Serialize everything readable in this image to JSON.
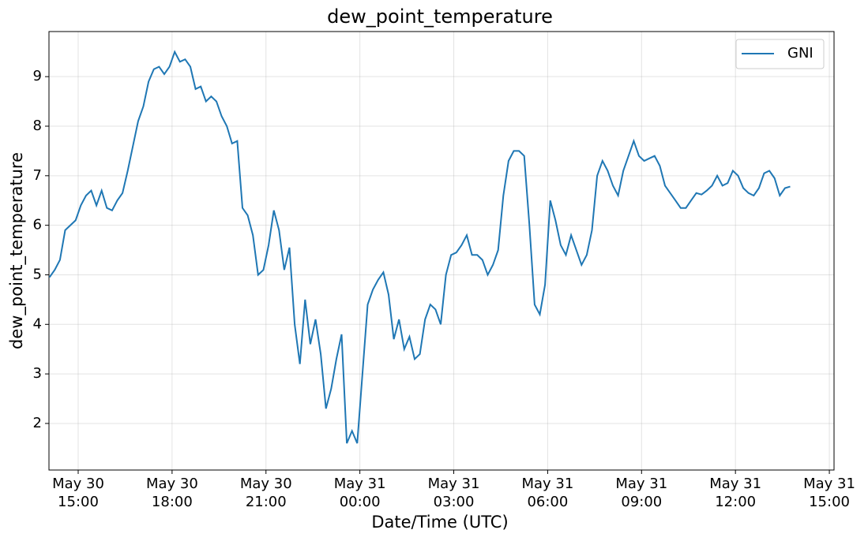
{
  "chart_data": {
    "type": "line",
    "title": "dew_point_temperature",
    "xlabel": "Date/Time (UTC)",
    "ylabel": "dew_point_temperature",
    "x": [
      "May 30 14:05",
      "May 30 14:15",
      "May 30 14:25",
      "May 30 14:35",
      "May 30 14:45",
      "May 30 14:55",
      "May 30 15:05",
      "May 30 15:15",
      "May 30 15:25",
      "May 30 15:35",
      "May 30 15:45",
      "May 30 15:55",
      "May 30 16:05",
      "May 30 16:15",
      "May 30 16:25",
      "May 30 16:35",
      "May 30 16:45",
      "May 30 16:55",
      "May 30 17:05",
      "May 30 17:15",
      "May 30 17:25",
      "May 30 17:35",
      "May 30 17:45",
      "May 30 17:55",
      "May 30 18:05",
      "May 30 18:15",
      "May 30 18:25",
      "May 30 18:35",
      "May 30 18:45",
      "May 30 18:55",
      "May 30 19:05",
      "May 30 19:15",
      "May 30 19:25",
      "May 30 19:35",
      "May 30 19:45",
      "May 30 19:55",
      "May 30 20:05",
      "May 30 20:15",
      "May 30 20:25",
      "May 30 20:35",
      "May 30 20:45",
      "May 30 20:55",
      "May 30 21:05",
      "May 30 21:15",
      "May 30 21:25",
      "May 30 21:35",
      "May 30 21:45",
      "May 30 21:55",
      "May 30 22:05",
      "May 30 22:15",
      "May 30 22:25",
      "May 30 22:35",
      "May 30 22:45",
      "May 30 22:55",
      "May 30 23:05",
      "May 30 23:15",
      "May 30 23:25",
      "May 30 23:35",
      "May 30 23:45",
      "May 30 23:55",
      "May 31 00:05",
      "May 31 00:15",
      "May 31 00:25",
      "May 31 00:35",
      "May 31 00:45",
      "May 31 00:55",
      "May 31 01:05",
      "May 31 01:15",
      "May 31 01:25",
      "May 31 01:35",
      "May 31 01:45",
      "May 31 01:55",
      "May 31 02:05",
      "May 31 02:15",
      "May 31 02:25",
      "May 31 02:35",
      "May 31 02:45",
      "May 31 02:55",
      "May 31 03:05",
      "May 31 03:15",
      "May 31 03:25",
      "May 31 03:35",
      "May 31 03:45",
      "May 31 03:55",
      "May 31 04:05",
      "May 31 04:15",
      "May 31 04:25",
      "May 31 04:35",
      "May 31 04:45",
      "May 31 04:55",
      "May 31 05:05",
      "May 31 05:15",
      "May 31 05:25",
      "May 31 05:35",
      "May 31 05:45",
      "May 31 05:55",
      "May 31 06:05",
      "May 31 06:15",
      "May 31 06:25",
      "May 31 06:35",
      "May 31 06:45",
      "May 31 06:55",
      "May 31 07:05",
      "May 31 07:15",
      "May 31 07:25",
      "May 31 07:35",
      "May 31 07:45",
      "May 31 07:55",
      "May 31 08:05",
      "May 31 08:15",
      "May 31 08:25",
      "May 31 08:35",
      "May 31 08:45",
      "May 31 08:55",
      "May 31 09:05",
      "May 31 09:15",
      "May 31 09:25",
      "May 31 09:35",
      "May 31 09:45",
      "May 31 09:55",
      "May 31 10:05",
      "May 31 10:15",
      "May 31 10:25",
      "May 31 10:35",
      "May 31 10:45",
      "May 31 10:55",
      "May 31 11:05",
      "May 31 11:15",
      "May 31 11:25",
      "May 31 11:35",
      "May 31 11:45",
      "May 31 11:55",
      "May 31 12:05",
      "May 31 12:15",
      "May 31 12:25",
      "May 31 12:35",
      "May 31 12:45",
      "May 31 12:55",
      "May 31 13:05",
      "May 31 13:15",
      "May 31 13:25",
      "May 31 13:35",
      "May 31 13:45"
    ],
    "series": [
      {
        "name": "GNI",
        "color": "#1f77b4",
        "values": [
          4.95,
          5.1,
          5.3,
          5.9,
          6.0,
          6.1,
          6.4,
          6.6,
          6.7,
          6.4,
          6.7,
          6.35,
          6.3,
          6.5,
          6.65,
          7.1,
          7.6,
          8.1,
          8.4,
          8.9,
          9.15,
          9.2,
          9.05,
          9.2,
          9.5,
          9.3,
          9.35,
          9.2,
          8.75,
          8.8,
          8.5,
          8.6,
          8.5,
          8.2,
          8.0,
          7.65,
          7.7,
          6.35,
          6.2,
          5.8,
          5.0,
          5.1,
          5.6,
          6.3,
          5.9,
          5.1,
          5.55,
          4.0,
          3.2,
          4.5,
          3.6,
          4.1,
          3.4,
          2.3,
          2.7,
          3.3,
          3.8,
          1.6,
          1.85,
          1.6,
          3.0,
          4.4,
          4.7,
          4.9,
          5.05,
          4.6,
          3.7,
          4.1,
          3.5,
          3.75,
          3.3,
          3.4,
          4.1,
          4.4,
          4.3,
          4.0,
          5.0,
          5.4,
          5.45,
          5.6,
          5.8,
          5.4,
          5.4,
          5.3,
          5.0,
          5.2,
          5.5,
          6.6,
          7.3,
          7.5,
          7.5,
          7.4,
          6.0,
          4.4,
          4.2,
          4.8,
          6.5,
          6.1,
          5.6,
          5.4,
          5.8,
          5.5,
          5.2,
          5.4,
          5.9,
          7.0,
          7.3,
          7.1,
          6.8,
          6.6,
          7.1,
          7.4,
          7.7,
          7.4,
          7.3,
          7.35,
          7.4,
          7.2,
          6.8,
          6.65,
          6.5,
          6.35,
          6.35,
          6.5,
          6.65,
          6.62,
          6.7,
          6.8,
          7.0,
          6.8,
          6.85,
          7.1,
          7.0,
          6.75,
          6.65,
          6.6,
          6.75,
          7.05,
          7.1,
          6.95,
          6.6,
          6.75,
          6.78
        ]
      }
    ],
    "xlim": [
      "May 30 14:04",
      "May 31 15:09"
    ],
    "xticks": [
      "May 30 15:00",
      "May 30 18:00",
      "May 30 21:00",
      "May 31 00:00",
      "May 31 03:00",
      "May 31 06:00",
      "May 31 09:00",
      "May 31 12:00",
      "May 31 15:00"
    ],
    "ylim": [
      1.06,
      9.91
    ],
    "yticks": [
      2,
      3,
      4,
      5,
      6,
      7,
      8,
      9
    ],
    "grid": true,
    "legend": "upper right"
  }
}
